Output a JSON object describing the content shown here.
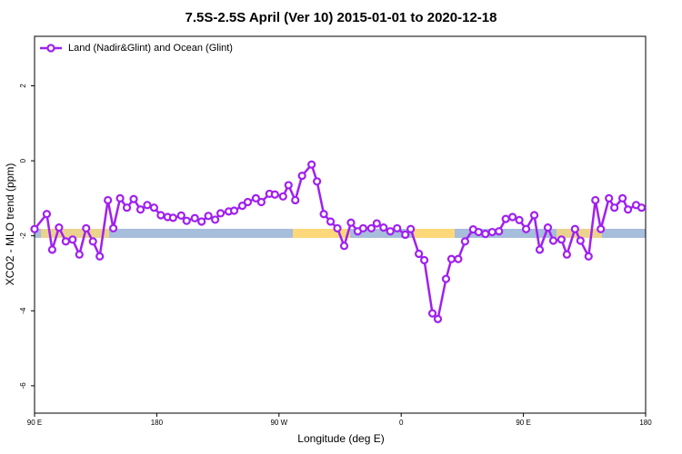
{
  "chart_data": {
    "type": "line",
    "title": "7.5S-2.5S April (Ver 10)   2015-01-01 to 2020-12-18",
    "x_label": "Longitude (deg E)",
    "y_label": "XCO2 - MLO trend (ppm)",
    "x": [
      90,
      99,
      103,
      108,
      113,
      118,
      123,
      128,
      133,
      138,
      144,
      148,
      153,
      158,
      163,
      168,
      173,
      178,
      183,
      188,
      192,
      198,
      202,
      208,
      213,
      218,
      223,
      227,
      233,
      237,
      243,
      247,
      253,
      257,
      263,
      267,
      273,
      277,
      282,
      287,
      294,
      298,
      303,
      308,
      313,
      318,
      323,
      328,
      332,
      338,
      342,
      347,
      352,
      357,
      363,
      367,
      373,
      377,
      383,
      387,
      393,
      397,
      402,
      407,
      413,
      417,
      422,
      427,
      432,
      437,
      442,
      447,
      452,
      458,
      462,
      468,
      472,
      478,
      482,
      488,
      492,
      498,
      503,
      507,
      513,
      517,
      523,
      527,
      533,
      537
    ],
    "series": [
      {
        "name": "Land (Nadir&Glint) and Ocean (Glint)",
        "color": "#a020f0",
        "values": [
          -1.82,
          -1.42,
          -2.37,
          -1.78,
          -2.15,
          -2.1,
          -2.5,
          -1.8,
          -2.15,
          -2.55,
          -1.05,
          -1.8,
          -1.0,
          -1.25,
          -1.02,
          -1.3,
          -1.18,
          -1.25,
          -1.45,
          -1.5,
          -1.52,
          -1.46,
          -1.6,
          -1.53,
          -1.62,
          -1.47,
          -1.57,
          -1.4,
          -1.35,
          -1.33,
          -1.2,
          -1.1,
          -1.0,
          -1.1,
          -0.88,
          -0.9,
          -0.95,
          -0.65,
          -1.05,
          -0.4,
          -0.1,
          -0.55,
          -1.42,
          -1.62,
          -1.8,
          -2.27,
          -1.65,
          -1.88,
          -1.8,
          -1.8,
          -1.67,
          -1.78,
          -1.88,
          -1.8,
          -1.97,
          -1.82,
          -2.48,
          -2.65,
          -4.07,
          -4.22,
          -3.15,
          -2.62,
          -2.62,
          -2.15,
          -1.83,
          -1.9,
          -1.95,
          -1.9,
          -1.88,
          -1.55,
          -1.5,
          -1.58,
          -1.82,
          -1.45,
          -2.37,
          -1.78,
          -2.13,
          -2.1,
          -2.5,
          -1.82,
          -2.13,
          -2.55,
          -1.05,
          -1.82,
          -1.0,
          -1.25,
          -1.0,
          -1.3,
          -1.18,
          -1.25
        ]
      }
    ],
    "xlim": [
      90,
      540
    ],
    "xticks": [
      {
        "value": 90,
        "label": "90 E"
      },
      180,
      {
        "value": 270,
        "label": "90 W"
      },
      {
        "value": 360,
        "label": "0"
      },
      {
        "value": 450,
        "label": "90 E"
      },
      {
        "value": 540,
        "label": "180"
      }
    ],
    "ylim": [
      -6.73,
      3.32
    ],
    "yticks": [
      2,
      0,
      -2,
      -4,
      -6
    ],
    "legend": "top-left"
  }
}
